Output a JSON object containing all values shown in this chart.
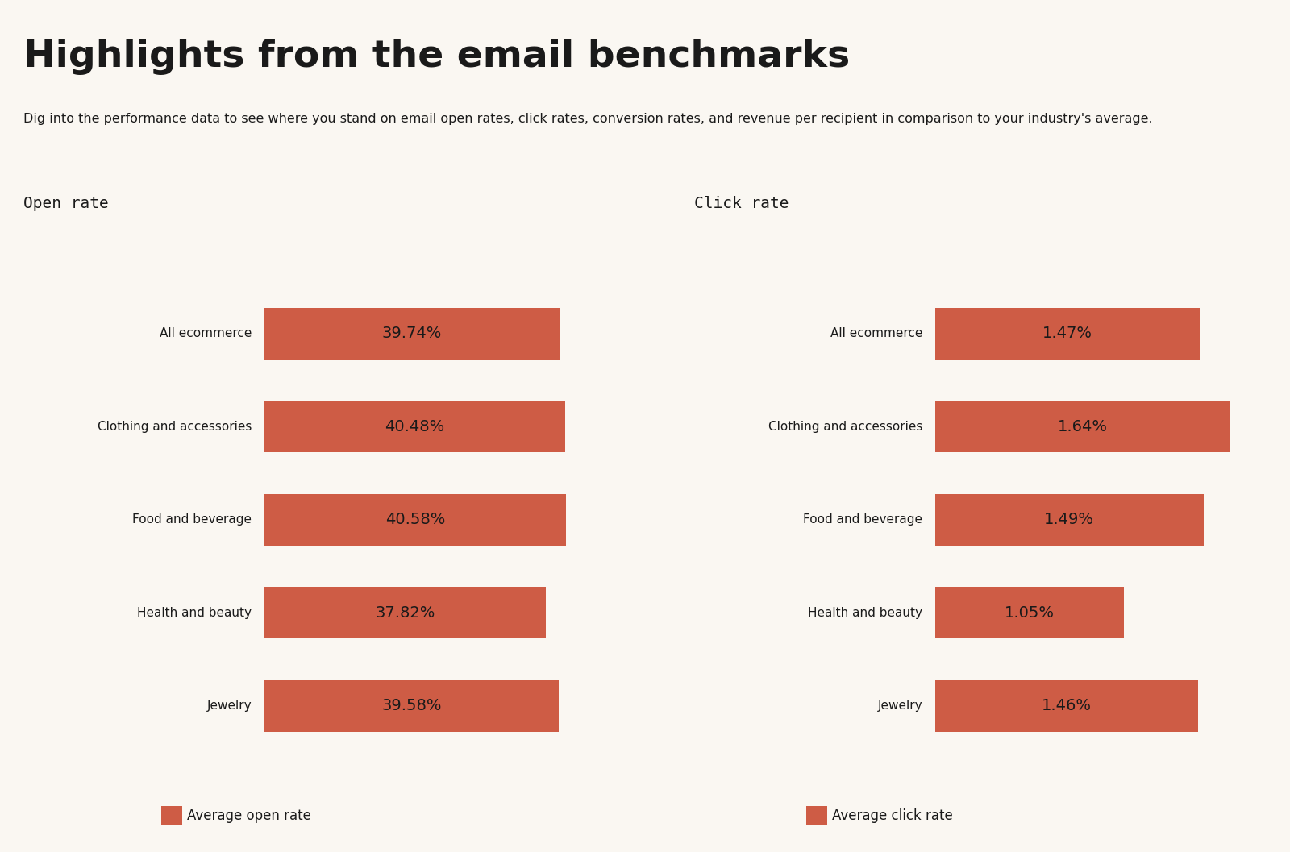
{
  "title": "Highlights from the email benchmarks",
  "subtitle": "Dig into the performance data to see where you stand on email open rates, click rates, conversion rates, and revenue per recipient in comparison to your industry's average.",
  "background_color": "#FAF7F2",
  "bar_color": "#CE5C45",
  "text_color": "#1a1a1a",
  "open_rate_label": "Open rate",
  "click_rate_label": "Click rate",
  "legend_open": "Average open rate",
  "legend_click": "Average click rate",
  "categories": [
    "All ecommerce",
    "Clothing and accessories",
    "Food and beverage",
    "Health and beauty",
    "Jewelry"
  ],
  "open_rates": [
    39.74,
    40.48,
    40.58,
    37.82,
    39.58
  ],
  "open_rate_labels": [
    "39.74%",
    "40.48%",
    "40.58%",
    "37.82%",
    "39.58%"
  ],
  "click_rates": [
    1.47,
    1.64,
    1.49,
    1.05,
    1.46
  ],
  "click_rate_labels": [
    "1.47%",
    "1.64%",
    "1.49%",
    "1.05%",
    "1.46%"
  ],
  "title_fontsize": 34,
  "subtitle_fontsize": 11.5,
  "section_label_fontsize": 14,
  "category_fontsize": 11,
  "bar_label_fontsize": 14,
  "legend_fontsize": 12
}
